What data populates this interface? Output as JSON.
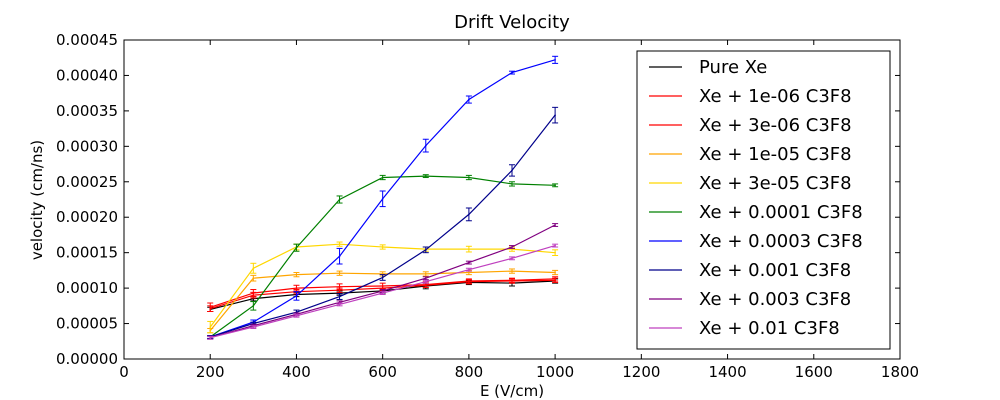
{
  "chart_data": {
    "type": "line",
    "title": "Drift Velocity",
    "xlabel": "E (V/cm)",
    "ylabel": "velocity (cm/ns)",
    "xlim": [
      0,
      1800
    ],
    "ylim": [
      0,
      0.00045
    ],
    "x_ticks": [
      "0",
      "200",
      "400",
      "600",
      "800",
      "1000",
      "1200",
      "1400",
      "1600",
      "1800"
    ],
    "y_ticks": [
      "0.00000",
      "0.00005",
      "0.00010",
      "0.00015",
      "0.00020",
      "0.00025",
      "0.00030",
      "0.00035",
      "0.00040",
      "0.00045"
    ],
    "grid": false,
    "legend_position": "top-right",
    "x": [
      200,
      300,
      400,
      500,
      600,
      700,
      800,
      900,
      1000
    ],
    "series": [
      {
        "name": "Pure Xe",
        "color": "#000000",
        "values": [
          7e-05,
          8.5e-05,
          9.1e-05,
          9.3e-05,
          9.6e-05,
          0.000103,
          0.000108,
          0.000107,
          0.00011
        ],
        "errors": [
          3e-06,
          3e-06,
          3e-06,
          3e-06,
          3e-06,
          4e-06,
          3e-06,
          4e-06,
          3e-06
        ]
      },
      {
        "name": "Xe + 1e-06 C3F8",
        "color": "#ff0000",
        "values": [
          7.1e-05,
          9e-05,
          9.5e-05,
          9.7e-05,
          0.0001,
          0.000104,
          0.000109,
          0.00011,
          0.000111
        ],
        "errors": [
          4e-06,
          4e-06,
          3e-06,
          3e-06,
          3e-06,
          3e-06,
          3e-06,
          3e-06,
          3e-06
        ]
      },
      {
        "name": "Xe + 3e-06 C3F8",
        "color": "#ff0000",
        "values": [
          7.3e-05,
          9.3e-05,
          0.0001,
          0.000102,
          0.000103,
          0.000105,
          0.00011,
          0.000111,
          0.000113
        ],
        "errors": [
          6e-06,
          5e-06,
          4e-06,
          4e-06,
          4e-06,
          4e-06,
          3e-06,
          3e-06,
          3e-06
        ]
      },
      {
        "name": "Xe + 1e-05 C3F8",
        "color": "#ffa500",
        "values": [
          4e-05,
          0.000114,
          0.000119,
          0.000121,
          0.00012,
          0.00012,
          0.000122,
          0.000124,
          0.000122
        ],
        "errors": [
          3e-06,
          4e-06,
          3e-06,
          3e-06,
          3e-06,
          3e-06,
          3e-06,
          3e-06,
          3e-06
        ]
      },
      {
        "name": "Xe + 3e-05 C3F8",
        "color": "#ffd700",
        "values": [
          4.5e-05,
          0.000128,
          0.000158,
          0.000162,
          0.000158,
          0.000155,
          0.000155,
          0.000155,
          0.00015
        ],
        "errors": [
          8e-06,
          7e-06,
          4e-06,
          3e-06,
          3e-06,
          3e-06,
          4e-06,
          3e-06,
          4e-06
        ]
      },
      {
        "name": "Xe + 0.0001 C3F8",
        "color": "#008000",
        "values": [
          3.1e-05,
          7.5e-05,
          0.000157,
          0.000225,
          0.000256,
          0.000258,
          0.000256,
          0.000247,
          0.000245
        ],
        "errors": [
          2e-06,
          6e-06,
          5e-06,
          5e-06,
          3e-06,
          2e-06,
          3e-06,
          3e-06,
          2e-06
        ]
      },
      {
        "name": "Xe + 0.0003 C3F8",
        "color": "#0000ff",
        "values": [
          3.1e-05,
          5.2e-05,
          8.9e-05,
          0.000145,
          0.000226,
          0.000301,
          0.000366,
          0.000404,
          0.000422
        ],
        "errors": [
          2e-06,
          3e-06,
          6e-06,
          1.1e-05,
          1.1e-05,
          9e-06,
          5e-06,
          2e-06,
          5e-06
        ]
      },
      {
        "name": "Xe + 0.001 C3F8",
        "color": "#00008b",
        "values": [
          3.1e-05,
          5e-05,
          6.6e-05,
          8.8e-05,
          0.000115,
          0.000154,
          0.000204,
          0.000266,
          0.000344
        ],
        "errors": [
          2e-06,
          2e-06,
          3e-06,
          4e-06,
          4e-06,
          4e-06,
          9e-06,
          8e-06,
          1.1e-05
        ]
      },
      {
        "name": "Xe + 0.003 C3F8",
        "color": "#800080",
        "values": [
          3e-05,
          4.7e-05,
          6.3e-05,
          8e-05,
          9.6e-05,
          0.000114,
          0.000136,
          0.000158,
          0.000189
        ],
        "errors": [
          2e-06,
          2e-06,
          2e-06,
          2e-06,
          2e-06,
          2e-06,
          2e-06,
          2e-06,
          2e-06
        ]
      },
      {
        "name": "Xe + 0.01 C3F8",
        "color": "#bf40bf",
        "values": [
          3e-05,
          4.5e-05,
          6.1e-05,
          7.7e-05,
          9.3e-05,
          0.000109,
          0.000126,
          0.000142,
          0.00016
        ],
        "errors": [
          2e-06,
          2e-06,
          2e-06,
          2e-06,
          2e-06,
          2e-06,
          2e-06,
          2e-06,
          2e-06
        ]
      }
    ]
  }
}
